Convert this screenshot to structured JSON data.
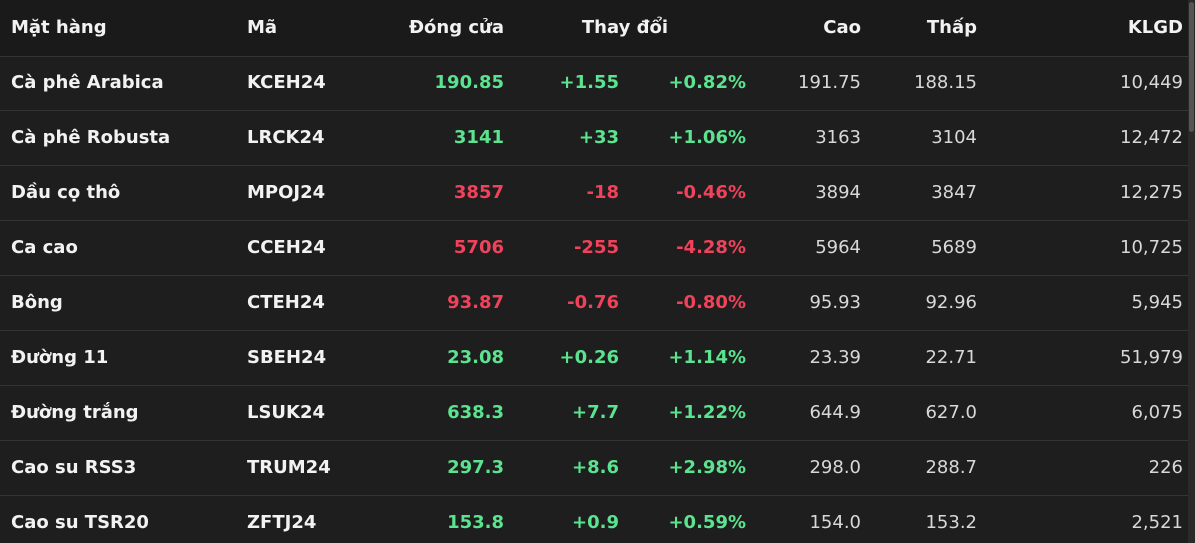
{
  "table": {
    "header": [
      "Mặt hàng",
      "Mã",
      "Đóng cửa",
      "Thay đổi",
      "Cao",
      "Thấp",
      "KLGD"
    ],
    "rows": [
      [
        "Cà phê Arabica",
        "KCEH24",
        "190.85",
        "+1.55",
        "+0.82%",
        "191.75",
        "188.15",
        "10,449"
      ],
      [
        "Cà phê Robusta",
        "LRCK24",
        "3141",
        "+33",
        "+1.06%",
        "3163",
        "3104",
        "12,472"
      ],
      [
        "Dầu cọ thô",
        "MPOJ24",
        "3857",
        "-18",
        "-0.46%",
        "3894",
        "3847",
        "12,275"
      ],
      [
        "Ca cao",
        "CCEH24",
        "5706",
        "-255",
        "-4.28%",
        "5964",
        "5689",
        "10,725"
      ],
      [
        "Bông",
        "CTEH24",
        "93.87",
        "-0.76",
        "-0.80%",
        "95.93",
        "92.96",
        "5,945"
      ],
      [
        "Đường 11",
        "SBEH24",
        "23.08",
        "+0.26",
        "+1.14%",
        "23.39",
        "22.71",
        "51,979"
      ],
      [
        "Đường trắng",
        "LSUK24",
        "638.3",
        "+7.7",
        "+1.22%",
        "644.9",
        "627.0",
        "6,075"
      ],
      [
        "Cao su RSS3",
        "TRUM24",
        "297.3",
        "+8.6",
        "+2.98%",
        "298.0",
        "288.7",
        "226"
      ],
      [
        "Cao su TSR20",
        "ZFTJ24",
        "153.8",
        "+0.9",
        "+0.59%",
        "154.0",
        "153.2",
        "2,521"
      ]
    ]
  }
}
